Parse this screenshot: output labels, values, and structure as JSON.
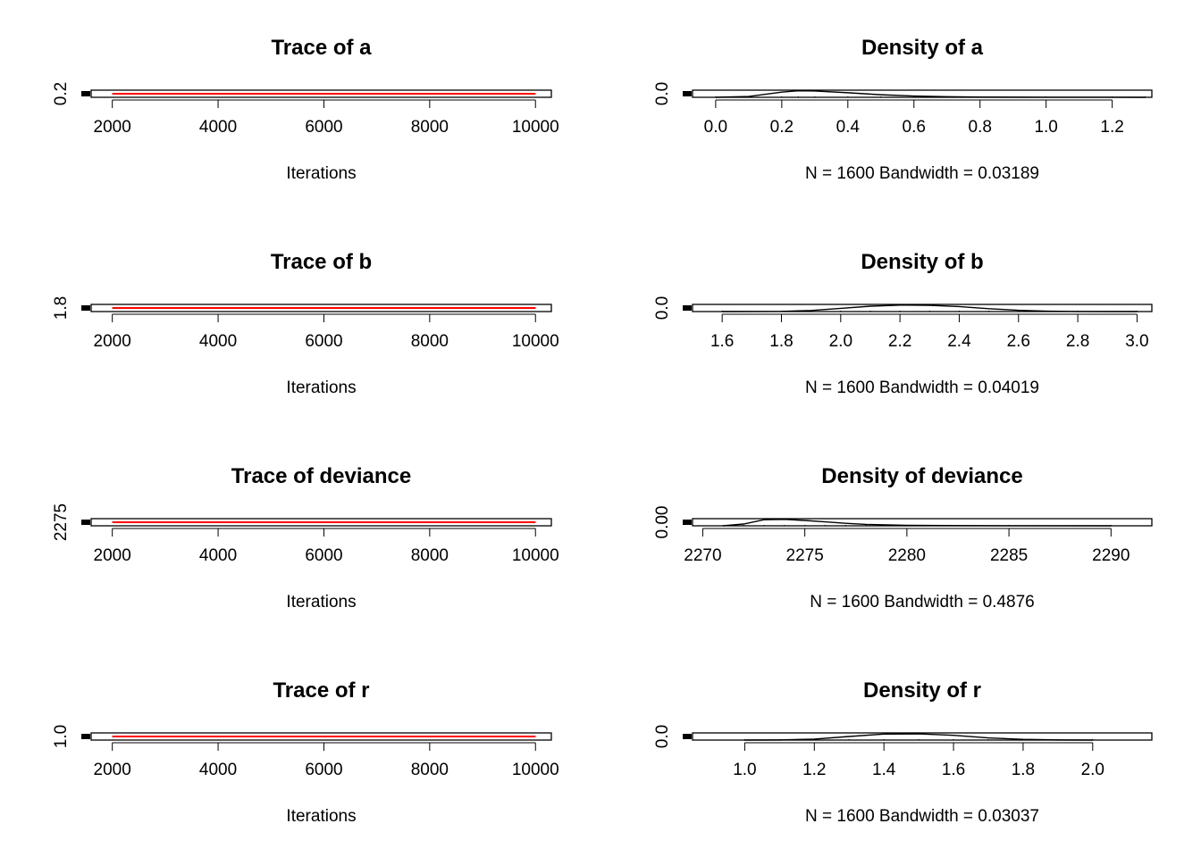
{
  "chart_data": [
    {
      "type": "line",
      "panel": "trace",
      "title": "Trace of a",
      "xlabel": "Iterations",
      "xlim": [
        1600,
        10300
      ],
      "x_ticks": [
        2000,
        4000,
        6000,
        8000,
        10000
      ],
      "y_ticks": [
        "0.2"
      ],
      "ylim": [
        0.1,
        0.3
      ],
      "x": [
        2000,
        10000
      ],
      "series": [
        {
          "color": "#000000",
          "values": [
            0.2,
            0.2
          ]
        },
        {
          "color": "#ff0000",
          "values": [
            0.2,
            0.2
          ]
        }
      ]
    },
    {
      "type": "area",
      "panel": "density",
      "title": "Density of a",
      "xlabel": "N = 1600   Bandwidth = 0.03189",
      "xlim": [
        -0.07,
        1.32
      ],
      "x_ticks": [
        "0.0",
        "0.2",
        "0.4",
        "0.6",
        "0.8",
        "1.0",
        "1.2"
      ],
      "y_ticks": [
        "0.0"
      ],
      "ylim": [
        0,
        2.5
      ],
      "x": [
        0.0,
        0.1,
        0.2,
        0.25,
        0.3,
        0.4,
        0.5,
        0.6,
        0.7,
        0.8,
        1.0,
        1.2,
        1.3
      ],
      "values": [
        0.0,
        0.3,
        1.8,
        2.3,
        2.2,
        1.6,
        0.9,
        0.45,
        0.2,
        0.08,
        0.02,
        0.005,
        0.0
      ]
    },
    {
      "type": "line",
      "panel": "trace",
      "title": "Trace of b",
      "xlabel": "Iterations",
      "xlim": [
        1600,
        10300
      ],
      "x_ticks": [
        2000,
        4000,
        6000,
        8000,
        10000
      ],
      "y_ticks": [
        "1.8"
      ],
      "ylim": [
        1.7,
        1.9
      ],
      "x": [
        2000,
        10000
      ],
      "series": [
        {
          "color": "#000000",
          "values": [
            1.8,
            1.8
          ]
        },
        {
          "color": "#ff0000",
          "values": [
            1.8,
            1.8
          ]
        }
      ]
    },
    {
      "type": "area",
      "panel": "density",
      "title": "Density of b",
      "xlabel": "N = 1600   Bandwidth = 0.04019",
      "xlim": [
        1.5,
        3.05
      ],
      "x_ticks": [
        "1.6",
        "1.8",
        "2.0",
        "2.2",
        "2.4",
        "2.6",
        "2.8",
        "3.0"
      ],
      "y_ticks": [
        "0.0"
      ],
      "ylim": [
        0,
        2.0
      ],
      "x": [
        1.6,
        1.8,
        1.9,
        2.0,
        2.1,
        2.2,
        2.3,
        2.4,
        2.5,
        2.6,
        2.7,
        2.8,
        3.0
      ],
      "values": [
        0.0,
        0.05,
        0.3,
        0.9,
        1.5,
        1.8,
        1.75,
        1.4,
        0.8,
        0.35,
        0.1,
        0.02,
        0.0
      ]
    },
    {
      "type": "line",
      "panel": "trace",
      "title": "Trace of deviance",
      "xlabel": "Iterations",
      "xlim": [
        1600,
        10300
      ],
      "x_ticks": [
        2000,
        4000,
        6000,
        8000,
        10000
      ],
      "y_ticks": [
        "2275"
      ],
      "ylim": [
        2270,
        2280
      ],
      "x": [
        2000,
        10000
      ],
      "series": [
        {
          "color": "#000000",
          "values": [
            2275,
            2275
          ]
        },
        {
          "color": "#ff0000",
          "values": [
            2275,
            2275
          ]
        }
      ]
    },
    {
      "type": "area",
      "panel": "density",
      "title": "Density of deviance",
      "xlabel": "N = 1600   Bandwidth = 0.4876",
      "xlim": [
        2269.5,
        2292
      ],
      "x_ticks": [
        "2270",
        "2275",
        "2280",
        "2285",
        "2290"
      ],
      "y_ticks": [
        "0.00"
      ],
      "ylim": [
        0,
        0.2
      ],
      "x": [
        2271,
        2272,
        2273,
        2274,
        2275,
        2276,
        2277,
        2278,
        2280,
        2282,
        2285,
        2290
      ],
      "values": [
        0.0,
        0.05,
        0.17,
        0.18,
        0.15,
        0.11,
        0.07,
        0.04,
        0.015,
        0.006,
        0.002,
        0.0
      ]
    },
    {
      "type": "line",
      "panel": "trace",
      "title": "Trace of r",
      "xlabel": "Iterations",
      "xlim": [
        1600,
        10300
      ],
      "x_ticks": [
        2000,
        4000,
        6000,
        8000,
        10000
      ],
      "y_ticks": [
        "1.0"
      ],
      "ylim": [
        0.9,
        1.1
      ],
      "x": [
        2000,
        10000
      ],
      "series": [
        {
          "color": "#000000",
          "values": [
            1.0,
            1.0
          ]
        },
        {
          "color": "#ff0000",
          "values": [
            1.0,
            1.0
          ]
        }
      ]
    },
    {
      "type": "area",
      "panel": "density",
      "title": "Density of r",
      "xlabel": "N = 1600   Bandwidth = 0.03037",
      "xlim": [
        0.85,
        2.17
      ],
      "x_ticks": [
        "1.0",
        "1.2",
        "1.4",
        "1.6",
        "1.8",
        "2.0"
      ],
      "y_ticks": [
        "0.0"
      ],
      "ylim": [
        0,
        3.0
      ],
      "x": [
        1.0,
        1.1,
        1.2,
        1.3,
        1.4,
        1.5,
        1.6,
        1.7,
        1.8,
        1.9,
        2.0
      ],
      "values": [
        0.0,
        0.05,
        0.4,
        1.5,
        2.5,
        2.6,
        2.0,
        0.9,
        0.3,
        0.05,
        0.0
      ]
    }
  ]
}
